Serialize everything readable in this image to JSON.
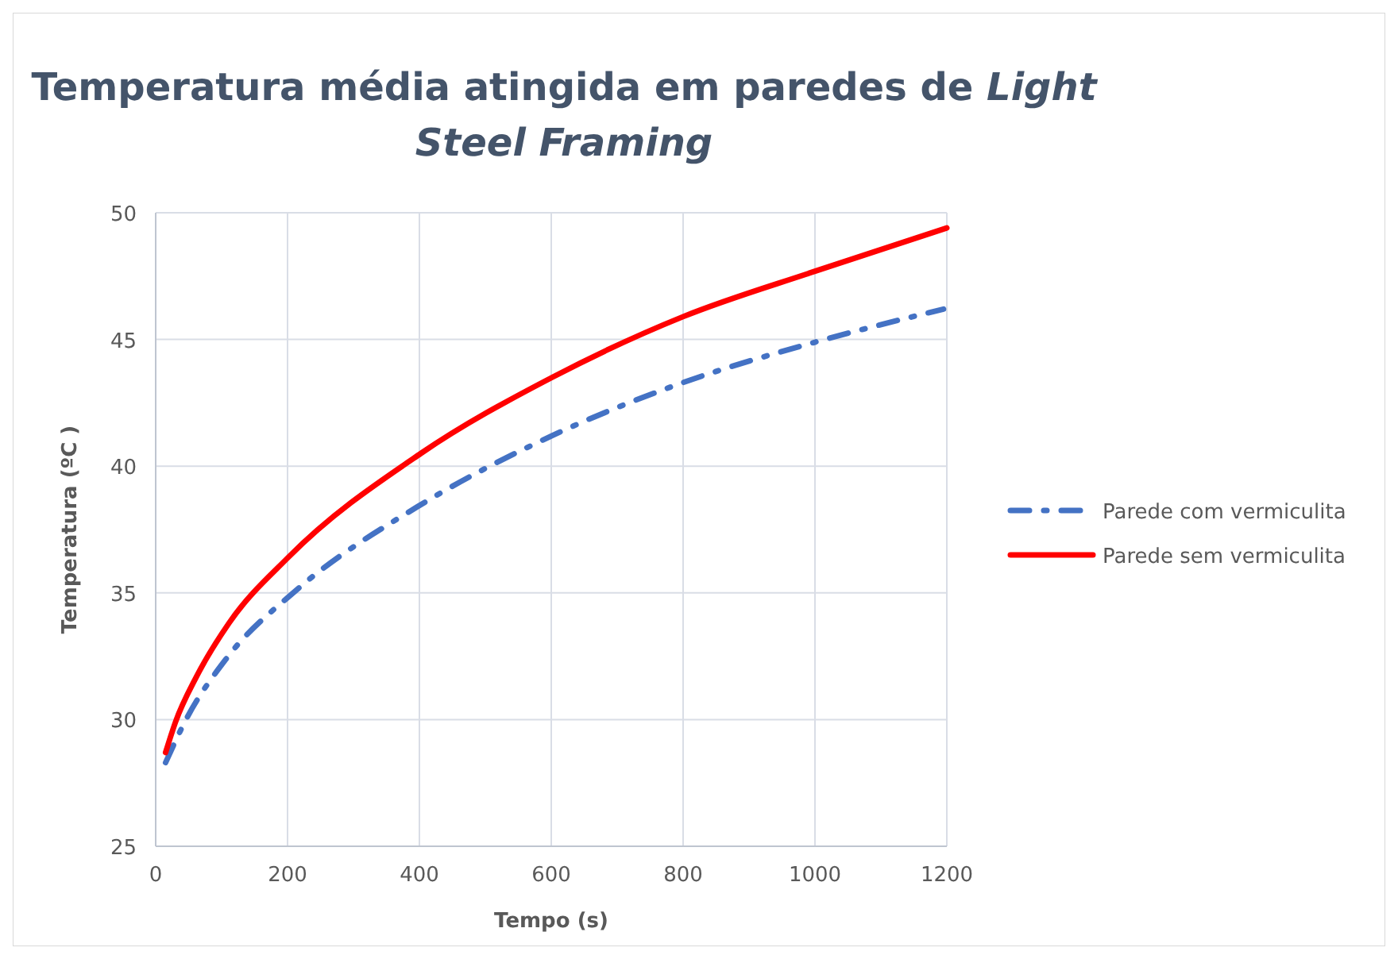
{
  "chart_data": {
    "type": "line",
    "title": "Temperatura média atingida em paredes de Light Steel Framing",
    "xlabel": "Tempo (s)",
    "ylabel": "Temperatura  (ºC )",
    "xlim": [
      0,
      1200
    ],
    "xticks": [
      0,
      200,
      400,
      600,
      800,
      1000,
      1200
    ],
    "ylim": [
      25,
      50
    ],
    "yticks": [
      25,
      30,
      35,
      40,
      45,
      50
    ],
    "grid": true,
    "legend": "right",
    "series": [
      {
        "name": "Parede com vermiculita",
        "color": "#4472c4",
        "line_style": "dashed",
        "x": [
          15,
          46,
          107,
          213,
          397,
          601,
          800,
          1001,
          1195
        ],
        "values": [
          28.3,
          30.0,
          32.4,
          35.1,
          38.4,
          41.2,
          43.3,
          44.9,
          46.2
        ]
      },
      {
        "name": "Parede sem vermiculita",
        "color": "#ff0000",
        "line_style": "solid",
        "x": [
          15,
          30,
          62,
          111,
          201,
          402,
          601,
          800,
          1001,
          1200
        ],
        "values": [
          28.7,
          29.9,
          31.7,
          33.8,
          36.4,
          40.5,
          43.5,
          45.9,
          47.7,
          49.4
        ]
      }
    ]
  }
}
